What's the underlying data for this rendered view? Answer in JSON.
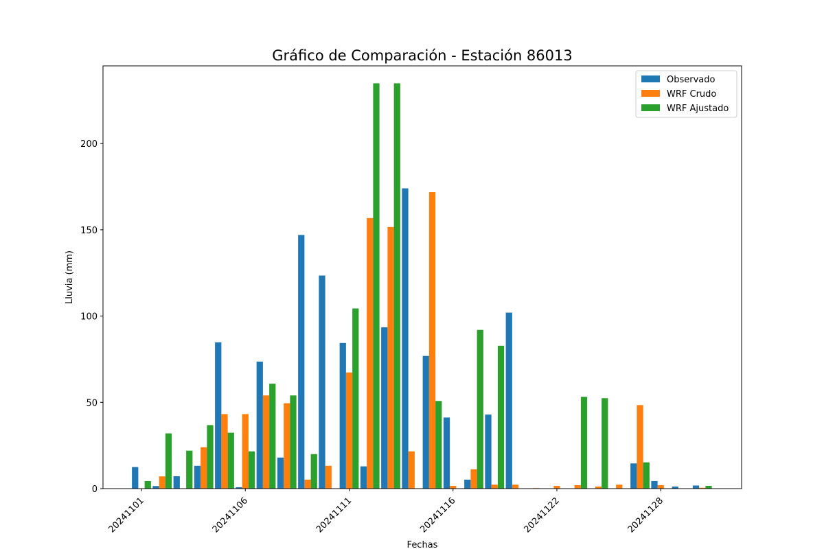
{
  "chart_data": {
    "type": "bar",
    "title": "Gráfico de Comparación - Estación 86013",
    "xlabel": "Fechas",
    "ylabel": "Lluvia (mm)",
    "ylim": [
      0,
      245
    ],
    "yticks": [
      0,
      50,
      100,
      150,
      200
    ],
    "xtick_labels": [
      "20241101",
      "20241106",
      "20241111",
      "20241116",
      "20241122",
      "20241128"
    ],
    "xtick_indices": [
      0,
      5,
      10,
      15,
      20,
      25
    ],
    "legend_position": "top-right",
    "categories": [
      "20241101",
      "20241102",
      "20241103",
      "20241104",
      "20241105",
      "20241106",
      "20241107",
      "20241108",
      "20241109",
      "20241110",
      "20241111",
      "20241112",
      "20241113",
      "20241114",
      "20241115",
      "20241116",
      "20241117",
      "20241118",
      "20241119",
      "20241120",
      "20241122",
      "20241123",
      "20241124",
      "20241125",
      "20241127",
      "20241128",
      "20241129",
      "20241130"
    ],
    "series": [
      {
        "name": "Observado",
        "color": "#1f77b4",
        "values": [
          12.5,
          1.5,
          7.2,
          13.2,
          84.8,
          0.8,
          73.6,
          18.0,
          147.0,
          123.5,
          84.4,
          12.9,
          93.5,
          174.0,
          76.9,
          41.2,
          5.2,
          42.9,
          102.0,
          0,
          0,
          0,
          0,
          0,
          14.6,
          4.4,
          1.2,
          1.8
        ]
      },
      {
        "name": "WRF Crudo",
        "color": "#ff7f0e",
        "values": [
          0,
          7.1,
          0,
          24.0,
          43.2,
          43.2,
          54.0,
          49.5,
          5.2,
          13.2,
          67.3,
          156.8,
          151.6,
          21.6,
          171.8,
          1.6,
          11.2,
          2.3,
          2.3,
          0.3,
          1.6,
          2.0,
          1.2,
          2.3,
          48.4,
          2.0,
          0,
          0.5
        ]
      },
      {
        "name": "WRF Ajustado",
        "color": "#2ca02c",
        "values": [
          4.4,
          32.0,
          22.0,
          36.8,
          32.4,
          21.6,
          60.8,
          54.0,
          20.0,
          0,
          104.4,
          234.9,
          234.9,
          0,
          50.8,
          0,
          92.0,
          82.8,
          0,
          0,
          0,
          53.2,
          52.4,
          0,
          15.2,
          0,
          0,
          1.6
        ]
      }
    ]
  }
}
